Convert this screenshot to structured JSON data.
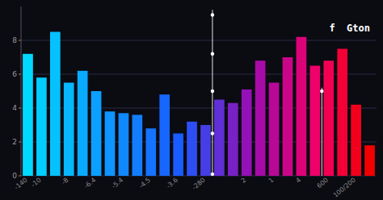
{
  "chart_data": {
    "type": "bar",
    "annotation": "f  Gton",
    "categories": [
      "-140",
      "-10",
      null,
      "-8",
      null,
      "-6.4",
      null,
      "-5.4",
      null,
      "-4.5",
      null,
      "-3.6",
      null,
      "-280",
      null,
      null,
      "2",
      null,
      "1",
      null,
      "4",
      null,
      "600",
      null,
      "100/200",
      null
    ],
    "values": [
      7.2,
      5.8,
      8.5,
      5.5,
      6.2,
      5.0,
      3.8,
      3.7,
      3.6,
      2.8,
      4.8,
      2.5,
      3.2,
      3.0,
      4.5,
      4.3,
      5.1,
      6.8,
      5.5,
      7.0,
      8.2,
      6.5,
      6.8,
      7.5,
      4.2,
      1.8
    ],
    "colors": [
      "#00d9ff",
      "#02cdff",
      "#05c2ff",
      "#07b7ff",
      "#09abff",
      "#0ba0ff",
      "#0e95ff",
      "#1089ff",
      "#127eff",
      "#1473ff",
      "#1767ff",
      "#195cff",
      "#2d4ef4",
      "#463ee4",
      "#602fd5",
      "#7920c6",
      "#9311b6",
      "#a60ba7",
      "#b80898",
      "#ca0688",
      "#dc0379",
      "#ee016a",
      "#f20052",
      "#f20036",
      "#f2001b",
      "#f20000"
    ],
    "vertical_lines": [
      {
        "x": 13.5,
        "top": 9.8,
        "dots": [
          9.5,
          7.2,
          5.0,
          2.5,
          0.1
        ]
      },
      {
        "x": 21.5,
        "top": 5.2,
        "dots": [
          5.0
        ]
      }
    ],
    "ylim": [
      0,
      10
    ],
    "yticks": [
      0,
      2,
      4,
      6,
      8
    ],
    "grid": true
  }
}
